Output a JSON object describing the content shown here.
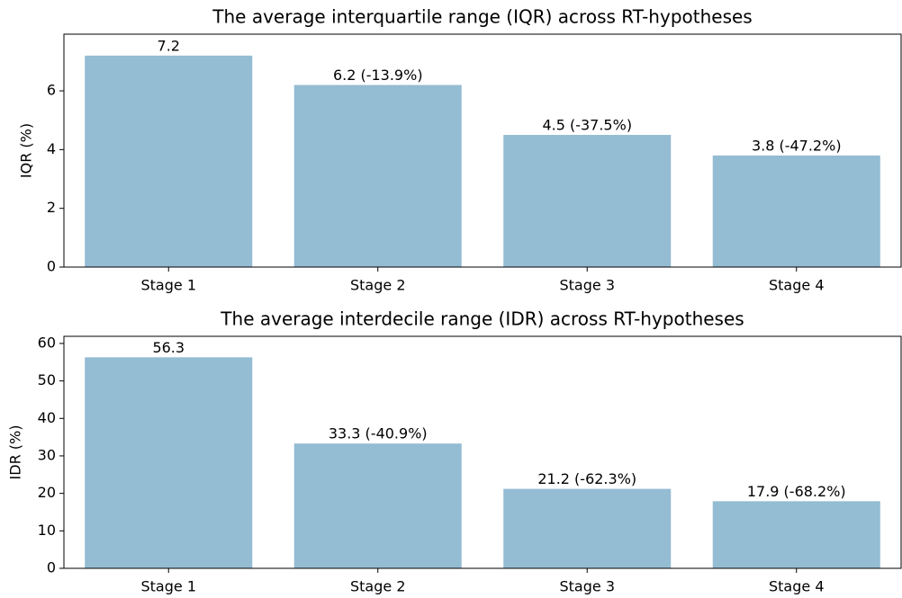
{
  "chart_data": [
    {
      "type": "bar",
      "title": "The average interquartile range (IQR) across RT-hypotheses",
      "y_label": "IQR (%)",
      "categories": [
        "Stage 1",
        "Stage 2",
        "Stage 3",
        "Stage 4"
      ],
      "values": [
        7.2,
        6.2,
        4.5,
        3.8
      ],
      "value_labels": [
        "7.2",
        "6.2 (-13.9%)",
        "4.5 (-37.5%)",
        "3.8 (-47.2%)"
      ],
      "color": "#94bcd3",
      "ylim": [
        0,
        7.93
      ],
      "yticks": [
        0,
        2,
        4,
        6
      ]
    },
    {
      "type": "bar",
      "title": "The average interdecile range (IDR) across RT-hypotheses",
      "y_label": "IDR (%)",
      "categories": [
        "Stage 1",
        "Stage 2",
        "Stage 3",
        "Stage 4"
      ],
      "values": [
        56.3,
        33.3,
        21.2,
        17.9
      ],
      "value_labels": [
        "56.3",
        "33.3 (-40.9%)",
        "21.2 (-62.3%)",
        "17.9 (-68.2%)"
      ],
      "color": "#94bcd3",
      "ylim": [
        0,
        61.9
      ],
      "yticks": [
        0,
        10,
        20,
        30,
        40,
        50,
        60
      ]
    }
  ]
}
